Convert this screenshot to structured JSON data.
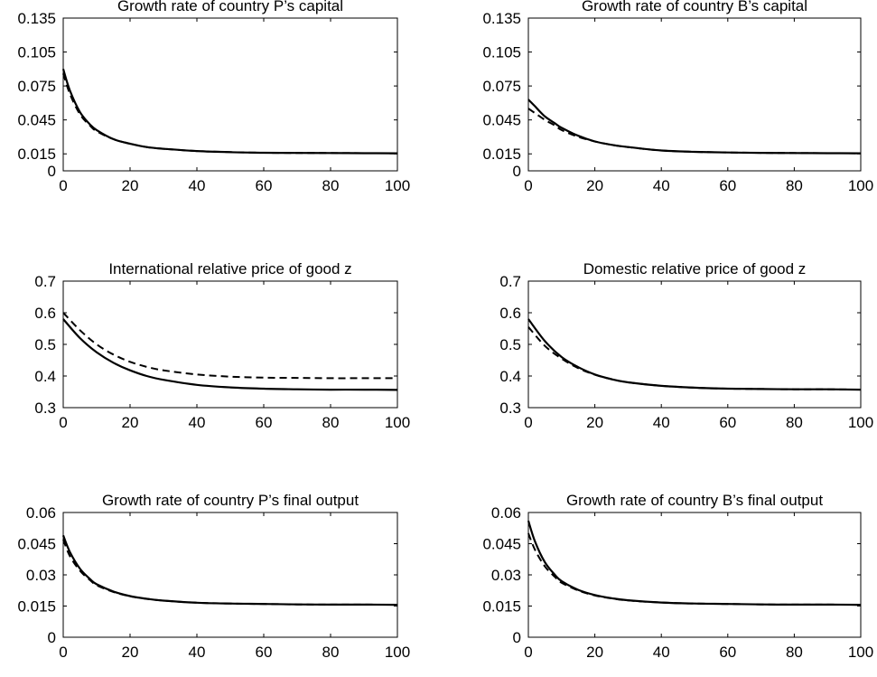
{
  "chart_data": [
    {
      "type": "line",
      "title": "Growth rate of country P’s capital",
      "xlim": [
        0,
        100
      ],
      "ylim": [
        0,
        0.135
      ],
      "xticks": [
        0,
        20,
        40,
        60,
        80,
        100
      ],
      "yticks": [
        0,
        0.015,
        0.045,
        0.075,
        0.105,
        0.135
      ],
      "xtick_labels": [
        "0",
        "20",
        "40",
        "60",
        "80",
        "100"
      ],
      "ytick_labels": [
        "0",
        "0.015",
        "0.045",
        "0.075",
        "0.105",
        "0.135"
      ],
      "series": [
        {
          "style": "solid",
          "x": [
            0,
            2,
            5,
            8,
            10,
            15,
            20,
            25,
            30,
            40,
            50,
            60,
            70,
            80,
            90,
            100
          ],
          "y": [
            0.09,
            0.071,
            0.052,
            0.041,
            0.036,
            0.028,
            0.024,
            0.021,
            0.0195,
            0.0175,
            0.0165,
            0.016,
            0.0158,
            0.0157,
            0.0156,
            0.0155
          ]
        },
        {
          "style": "dashed",
          "x": [
            0,
            2,
            5,
            8,
            10,
            15,
            20,
            25,
            30,
            40,
            50,
            60,
            70,
            80,
            90,
            100
          ],
          "y": [
            0.086,
            0.068,
            0.05,
            0.04,
            0.035,
            0.028,
            0.024,
            0.021,
            0.0195,
            0.0175,
            0.0165,
            0.016,
            0.0158,
            0.0157,
            0.0156,
            0.0155
          ]
        }
      ]
    },
    {
      "type": "line",
      "title": "Growth rate of country B’s capital",
      "xlim": [
        0,
        100
      ],
      "ylim": [
        0,
        0.135
      ],
      "xticks": [
        0,
        20,
        40,
        60,
        80,
        100
      ],
      "yticks": [
        0,
        0.015,
        0.045,
        0.075,
        0.105,
        0.135
      ],
      "xtick_labels": [
        "0",
        "20",
        "40",
        "60",
        "80",
        "100"
      ],
      "ytick_labels": [
        "0",
        "0.015",
        "0.045",
        "0.075",
        "0.105",
        "0.135"
      ],
      "series": [
        {
          "style": "solid",
          "x": [
            0,
            2,
            5,
            8,
            10,
            15,
            20,
            25,
            30,
            40,
            50,
            60,
            70,
            80,
            90,
            100
          ],
          "y": [
            0.063,
            0.057,
            0.048,
            0.042,
            0.038,
            0.031,
            0.026,
            0.023,
            0.021,
            0.018,
            0.0168,
            0.0162,
            0.0159,
            0.0157,
            0.0156,
            0.0155
          ]
        },
        {
          "style": "dashed",
          "x": [
            0,
            2,
            5,
            8,
            10,
            15,
            20,
            25,
            30,
            40,
            50,
            60,
            70,
            80,
            90,
            100
          ],
          "y": [
            0.055,
            0.051,
            0.045,
            0.04,
            0.036,
            0.03,
            0.026,
            0.023,
            0.021,
            0.018,
            0.0168,
            0.0162,
            0.0159,
            0.0157,
            0.0156,
            0.0155
          ]
        }
      ]
    },
    {
      "type": "line",
      "title": "International relative price of good z",
      "xlim": [
        0,
        100
      ],
      "ylim": [
        0.3,
        0.7
      ],
      "xticks": [
        0,
        20,
        40,
        60,
        80,
        100
      ],
      "yticks": [
        0.3,
        0.4,
        0.5,
        0.6,
        0.7
      ],
      "xtick_labels": [
        "0",
        "20",
        "40",
        "60",
        "80",
        "100"
      ],
      "ytick_labels": [
        "0.3",
        "0.4",
        "0.5",
        "0.6",
        "0.7"
      ],
      "series": [
        {
          "style": "solid",
          "x": [
            0,
            5,
            10,
            15,
            20,
            25,
            30,
            40,
            50,
            60,
            70,
            80,
            90,
            100
          ],
          "y": [
            0.58,
            0.52,
            0.475,
            0.442,
            0.418,
            0.4,
            0.388,
            0.372,
            0.364,
            0.36,
            0.358,
            0.357,
            0.357,
            0.356
          ]
        },
        {
          "style": "dashed",
          "x": [
            0,
            5,
            10,
            15,
            20,
            25,
            30,
            40,
            50,
            60,
            70,
            80,
            90,
            100
          ],
          "y": [
            0.6,
            0.545,
            0.5,
            0.468,
            0.445,
            0.429,
            0.418,
            0.405,
            0.398,
            0.395,
            0.394,
            0.393,
            0.393,
            0.393
          ]
        }
      ]
    },
    {
      "type": "line",
      "title": "Domestic relative price of good z",
      "xlim": [
        0,
        100
      ],
      "ylim": [
        0.3,
        0.7
      ],
      "xticks": [
        0,
        20,
        40,
        60,
        80,
        100
      ],
      "yticks": [
        0.3,
        0.4,
        0.5,
        0.6,
        0.7
      ],
      "xtick_labels": [
        "0",
        "20",
        "40",
        "60",
        "80",
        "100"
      ],
      "ytick_labels": [
        "0.3",
        "0.4",
        "0.5",
        "0.6",
        "0.7"
      ],
      "series": [
        {
          "style": "solid",
          "x": [
            0,
            5,
            10,
            15,
            20,
            25,
            30,
            40,
            50,
            60,
            70,
            80,
            90,
            100
          ],
          "y": [
            0.58,
            0.51,
            0.46,
            0.428,
            0.405,
            0.39,
            0.38,
            0.369,
            0.363,
            0.36,
            0.359,
            0.358,
            0.358,
            0.357
          ]
        },
        {
          "style": "dashed",
          "x": [
            0,
            5,
            10,
            15,
            20,
            25,
            30,
            40,
            50,
            60,
            70,
            80,
            90,
            100
          ],
          "y": [
            0.555,
            0.495,
            0.455,
            0.425,
            0.404,
            0.39,
            0.38,
            0.369,
            0.363,
            0.36,
            0.359,
            0.358,
            0.358,
            0.357
          ]
        }
      ]
    },
    {
      "type": "line",
      "title": "Growth rate of country P’s final output",
      "xlim": [
        0,
        100
      ],
      "ylim": [
        0,
        0.06
      ],
      "xticks": [
        0,
        20,
        40,
        60,
        80,
        100
      ],
      "yticks": [
        0,
        0.015,
        0.03,
        0.045,
        0.06
      ],
      "xtick_labels": [
        "0",
        "20",
        "40",
        "60",
        "80",
        "100"
      ],
      "ytick_labels": [
        "0",
        "0.015",
        "0.03",
        "0.045",
        "0.06"
      ],
      "series": [
        {
          "style": "solid",
          "x": [
            0,
            2,
            5,
            8,
            10,
            15,
            20,
            25,
            30,
            40,
            50,
            60,
            70,
            80,
            90,
            100
          ],
          "y": [
            0.049,
            0.041,
            0.033,
            0.028,
            0.0255,
            0.022,
            0.0198,
            0.0185,
            0.0176,
            0.0166,
            0.0162,
            0.016,
            0.0158,
            0.0157,
            0.0157,
            0.0156
          ]
        },
        {
          "style": "dashed",
          "x": [
            0,
            2,
            5,
            8,
            10,
            15,
            20,
            25,
            30,
            40,
            50,
            60,
            70,
            80,
            90,
            100
          ],
          "y": [
            0.047,
            0.039,
            0.032,
            0.0275,
            0.025,
            0.0218,
            0.0197,
            0.0185,
            0.0176,
            0.0166,
            0.0162,
            0.016,
            0.0158,
            0.0157,
            0.0157,
            0.0156
          ]
        }
      ]
    },
    {
      "type": "line",
      "title": "Growth rate of country B’s final output",
      "xlim": [
        0,
        100
      ],
      "ylim": [
        0,
        0.06
      ],
      "xticks": [
        0,
        20,
        40,
        60,
        80,
        100
      ],
      "yticks": [
        0,
        0.015,
        0.03,
        0.045,
        0.06
      ],
      "xtick_labels": [
        "0",
        "20",
        "40",
        "60",
        "80",
        "100"
      ],
      "ytick_labels": [
        "0",
        "0.015",
        "0.03",
        "0.045",
        "0.06"
      ],
      "series": [
        {
          "style": "solid",
          "x": [
            0,
            2,
            5,
            8,
            10,
            15,
            20,
            25,
            30,
            40,
            50,
            60,
            70,
            80,
            90,
            100
          ],
          "y": [
            0.056,
            0.046,
            0.036,
            0.03,
            0.027,
            0.0228,
            0.0203,
            0.0188,
            0.0178,
            0.0167,
            0.0162,
            0.016,
            0.0158,
            0.0157,
            0.0157,
            0.0156
          ]
        },
        {
          "style": "dashed",
          "x": [
            0,
            2,
            5,
            8,
            10,
            15,
            20,
            25,
            30,
            40,
            50,
            60,
            70,
            80,
            90,
            100
          ],
          "y": [
            0.05,
            0.042,
            0.034,
            0.029,
            0.0262,
            0.0225,
            0.0201,
            0.0187,
            0.0177,
            0.0167,
            0.0162,
            0.016,
            0.0158,
            0.0157,
            0.0157,
            0.0156
          ]
        }
      ]
    }
  ]
}
